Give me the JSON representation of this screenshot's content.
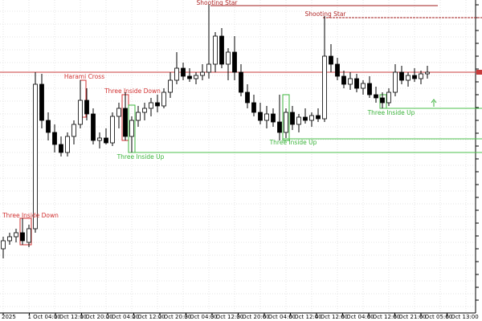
{
  "chart_data": {
    "type": "candlestick",
    "ylim": [
      0,
      390
    ],
    "x_labels": [
      "2025",
      "1 Oct 04:00",
      "1 Oct 12:00",
      "1 Oct 20:00",
      "2 Oct 04:00",
      "2 Oct 12:00",
      "2 Oct 20:00",
      "3 Oct 04:00",
      "3 Oct 12:00",
      "3 Oct 20:00",
      "6 Oct 04:00",
      "6 Oct 12:00",
      "4 Oct 12:00",
      "6 Oct 04:00",
      "6 Oct 12:00",
      "6 Oct 21:00",
      "6 Oct 05:00",
      "6 Oct 13:00"
    ],
    "open": [
      80,
      90,
      95,
      100,
      88,
      105,
      285,
      240,
      225,
      210,
      200,
      220,
      235,
      265,
      248,
      215,
      218,
      212,
      245,
      255,
      220,
      240,
      250,
      255,
      262,
      258,
      275,
      290,
      305,
      295,
      292,
      296,
      300,
      310,
      345,
      310,
      325,
      300,
      275,
      262,
      250,
      240,
      248,
      238,
      225,
      250,
      235,
      244,
      240,
      246,
      242,
      320,
      310,
      295,
      285,
      292,
      280,
      286,
      272,
      268,
      262,
      275,
      300,
      290,
      296,
      292,
      298
    ],
    "high": [
      95,
      100,
      105,
      118,
      110,
      300,
      298,
      250,
      235,
      220,
      225,
      240,
      290,
      280,
      255,
      225,
      230,
      250,
      262,
      275,
      245,
      258,
      262,
      268,
      272,
      280,
      300,
      325,
      312,
      305,
      300,
      310,
      385,
      350,
      355,
      330,
      345,
      310,
      285,
      272,
      262,
      258,
      255,
      272,
      255,
      258,
      248,
      255,
      250,
      255,
      370,
      335,
      318,
      302,
      300,
      298,
      290,
      295,
      282,
      275,
      280,
      310,
      308,
      300,
      305,
      302,
      308
    ],
    "low": [
      68,
      85,
      88,
      85,
      82,
      100,
      230,
      215,
      200,
      195,
      195,
      210,
      230,
      240,
      210,
      205,
      210,
      208,
      230,
      215,
      200,
      232,
      240,
      245,
      250,
      255,
      268,
      285,
      290,
      288,
      285,
      290,
      292,
      300,
      305,
      290,
      290,
      270,
      255,
      245,
      235,
      230,
      232,
      215,
      218,
      228,
      225,
      236,
      232,
      238,
      238,
      300,
      290,
      280,
      278,
      275,
      272,
      268,
      262,
      255,
      258,
      270,
      285,
      282,
      288,
      285,
      292
    ],
    "close": [
      90,
      95,
      100,
      90,
      105,
      285,
      240,
      225,
      210,
      200,
      220,
      235,
      265,
      248,
      215,
      218,
      212,
      245,
      255,
      220,
      240,
      250,
      255,
      262,
      258,
      275,
      290,
      305,
      295,
      292,
      296,
      300,
      310,
      345,
      310,
      325,
      300,
      275,
      262,
      250,
      240,
      248,
      238,
      225,
      250,
      235,
      244,
      240,
      246,
      242,
      320,
      310,
      295,
      285,
      292,
      280,
      286,
      272,
      268,
      262,
      275,
      300,
      290,
      296,
      292,
      298,
      300
    ],
    "levels": [
      {
        "value": 300,
        "color": "#c83c3c"
      },
      {
        "value": 383,
        "color": "#a01e1e"
      },
      {
        "value": 368,
        "color": "#a01e1e"
      },
      {
        "value": 200,
        "color": "#4cc24c"
      },
      {
        "value": 217,
        "color": "#4cc24c"
      },
      {
        "value": 255,
        "color": "#4cc24c"
      }
    ],
    "annotations": [
      {
        "text": "Shooting Star",
        "color": "#b02828"
      },
      {
        "text": "Shooting Star",
        "color": "#b02828"
      },
      {
        "text": "Harami Cross",
        "color": "#d23232"
      },
      {
        "text": "Three Inside Down",
        "color": "#d23232"
      },
      {
        "text": "Three Inside Down",
        "color": "#d23232"
      },
      {
        "text": "Three Inside Up",
        "color": "#3cb43c"
      },
      {
        "text": "Three Inside Up",
        "color": "#3cb43c"
      },
      {
        "text": "Three Inside Up",
        "color": "#3cb43c"
      }
    ]
  }
}
